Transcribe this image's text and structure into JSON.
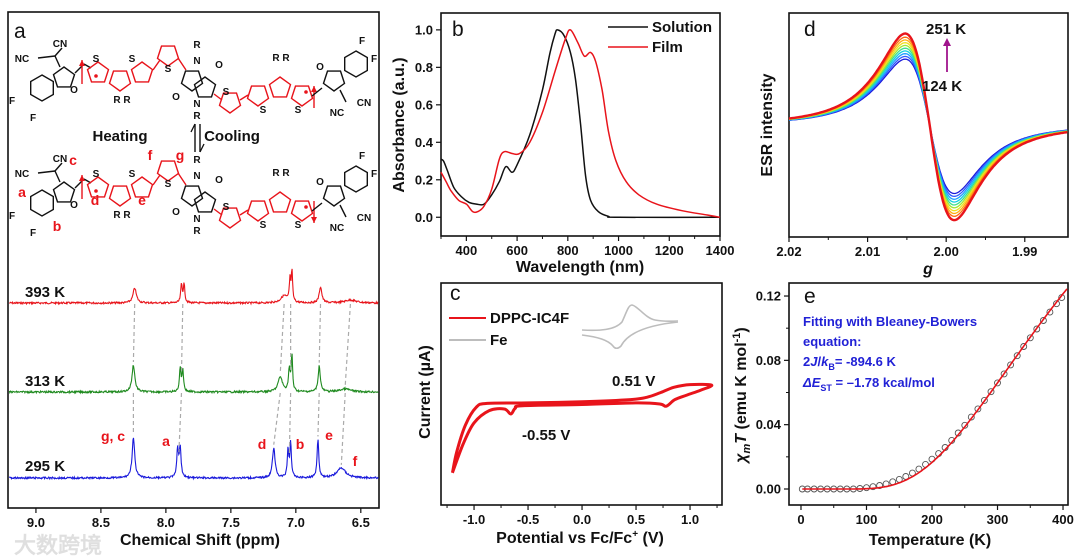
{
  "panel_a": {
    "label": "a",
    "heating": "Heating",
    "cooling": "Cooling",
    "atoms": {
      "NC": "NC",
      "CN": "CN",
      "F": "F",
      "O": "O",
      "S": "S",
      "R": "R",
      "N": "N",
      "RR": "R R"
    },
    "proton_labels": {
      "a": "a",
      "b": "b",
      "c": "c",
      "d": "d",
      "e": "e",
      "f": "f",
      "g": "g"
    },
    "watermark": "大数跨境"
  },
  "colors": {
    "red": "#e8141b",
    "green": "#1f8a1f",
    "blue": "#1a1adb",
    "gray": "#bdbdbd",
    "fit_text": "#2121d6",
    "magenta": "#a0148c"
  },
  "chart_data": [
    {
      "type": "line",
      "title": "",
      "xlabel": "Chemical Shift (ppm)",
      "ylabel": "",
      "xlim": [
        9.215,
        6.36
      ],
      "xticks": [
        "9.0",
        "8.5",
        "8.0",
        "7.5",
        "7.0",
        "6.5"
      ],
      "series": [
        {
          "name": "393 K",
          "color": "#e8141b",
          "peaks": [
            [
              8.24,
              15,
              0.015
            ],
            [
              7.88,
              18,
              0.007
            ],
            [
              7.86,
              18,
              0.007
            ],
            [
              7.09,
              7,
              0.03
            ],
            [
              7.045,
              22,
              0.006
            ],
            [
              7.03,
              30,
              0.006
            ],
            [
              6.81,
              16,
              0.012
            ],
            [
              6.58,
              3,
              0.05
            ]
          ]
        },
        {
          "name": "313 K",
          "color": "#1f8a1f",
          "peaks": [
            [
              8.25,
              27,
              0.013
            ],
            [
              7.89,
              24,
              0.007
            ],
            [
              7.87,
              22,
              0.007
            ],
            [
              7.12,
              15,
              0.02
            ],
            [
              7.05,
              22,
              0.008
            ],
            [
              7.03,
              36,
              0.006
            ],
            [
              6.82,
              26,
              0.01
            ],
            [
              6.62,
              3,
              0.05
            ]
          ]
        },
        {
          "name": "295 K",
          "color": "#1a1adb",
          "peaks": [
            [
              8.25,
              40,
              0.012
            ],
            [
              7.91,
              28,
              0.008
            ],
            [
              7.89,
              30,
              0.008
            ],
            [
              7.17,
              30,
              0.012
            ],
            [
              7.06,
              28,
              0.007
            ],
            [
              7.04,
              34,
              0.007
            ],
            [
              6.83,
              38,
              0.008
            ],
            [
              6.65,
              10,
              0.04
            ]
          ]
        }
      ],
      "peak_tracks_ppm": [
        [
          8.24,
          8.25,
          8.25
        ],
        [
          7.87,
          7.88,
          7.9
        ],
        [
          7.09,
          7.12,
          7.17
        ],
        [
          7.04,
          7.04,
          7.05
        ],
        [
          6.81,
          6.82,
          6.83
        ],
        [
          6.58,
          6.62,
          6.65
        ]
      ],
      "peak_labels": [
        "g, c",
        "a",
        "d",
        "b",
        "e",
        "f"
      ]
    },
    {
      "type": "line",
      "title": "",
      "panel_label": "b",
      "xlabel": "Wavelength (nm)",
      "ylabel": "Absorbance (a.u.)",
      "xlim": [
        300,
        1400
      ],
      "ylim": [
        -0.1,
        1.09
      ],
      "xticks": [
        "400",
        "600",
        "800",
        "1000",
        "1200",
        "1400"
      ],
      "xminor": [
        300,
        500,
        700,
        900,
        1100,
        1300
      ],
      "yticks": [
        "0.0",
        "0.2",
        "0.4",
        "0.6",
        "0.8",
        "1.0"
      ],
      "legend_position": "top-right",
      "series": [
        {
          "name": "Solution",
          "color": "#111111",
          "points": [
            [
              300,
              0.31
            ],
            [
              310,
              0.3
            ],
            [
              325,
              0.25
            ],
            [
              350,
              0.16
            ],
            [
              380,
              0.11
            ],
            [
              410,
              0.08
            ],
            [
              440,
              0.07
            ],
            [
              470,
              0.07
            ],
            [
              500,
              0.12
            ],
            [
              530,
              0.19
            ],
            [
              555,
              0.27
            ],
            [
              580,
              0.24
            ],
            [
              600,
              0.28
            ],
            [
              650,
              0.44
            ],
            [
              700,
              0.68
            ],
            [
              730,
              0.88
            ],
            [
              750,
              0.98
            ],
            [
              760,
              1.0
            ],
            [
              785,
              0.97
            ],
            [
              810,
              0.88
            ],
            [
              830,
              0.74
            ],
            [
              850,
              0.5
            ],
            [
              870,
              0.22
            ],
            [
              890,
              0.09
            ],
            [
              920,
              0.03
            ],
            [
              960,
              0.005
            ],
            [
              1000,
              0
            ],
            [
              1400,
              0
            ]
          ]
        },
        {
          "name": "Film",
          "color": "#e8141b",
          "points": [
            [
              300,
              0.24
            ],
            [
              320,
              0.19
            ],
            [
              340,
              0.14
            ],
            [
              370,
              0.09
            ],
            [
              400,
              0.07
            ],
            [
              425,
              0.03
            ],
            [
              445,
              0.03
            ],
            [
              470,
              0.06
            ],
            [
              500,
              0.15
            ],
            [
              530,
              0.31
            ],
            [
              550,
              0.35
            ],
            [
              580,
              0.34
            ],
            [
              610,
              0.34
            ],
            [
              650,
              0.4
            ],
            [
              700,
              0.56
            ],
            [
              750,
              0.78
            ],
            [
              790,
              0.95
            ],
            [
              810,
              1.0
            ],
            [
              840,
              0.93
            ],
            [
              865,
              0.86
            ],
            [
              890,
              0.88
            ],
            [
              910,
              0.83
            ],
            [
              935,
              0.68
            ],
            [
              960,
              0.46
            ],
            [
              990,
              0.3
            ],
            [
              1030,
              0.19
            ],
            [
              1080,
              0.12
            ],
            [
              1150,
              0.07
            ],
            [
              1250,
              0.035
            ],
            [
              1350,
              0.012
            ],
            [
              1400,
              0
            ]
          ]
        }
      ]
    },
    {
      "type": "line",
      "title": "",
      "panel_label": "c",
      "xlabel_main": "Potential vs Fc/Fc",
      "xlabel_sup": "+",
      "xlabel_tail": " (V)",
      "ylabel": "Current (µA)",
      "xlim": [
        -1.306,
        1.296
      ],
      "ylim": [
        -10,
        10
      ],
      "xticks": [
        "-1.0",
        "-0.5",
        "0.0",
        "0.5",
        "1.0"
      ],
      "xminor": [
        -1.25,
        -0.75,
        -0.25,
        0.25,
        0.75,
        1.25
      ],
      "legend_position": "top-left",
      "annotations": [
        "0.51 V",
        "-0.55 V"
      ],
      "series": [
        {
          "name": "DPPC-IC4F",
          "color": "#e8141b",
          "points": [
            [
              -1.2,
              -7.1
            ],
            [
              -1.16,
              -5.2
            ],
            [
              -1.08,
              -2.8
            ],
            [
              -0.98,
              -1.2
            ],
            [
              -0.88,
              -0.85
            ],
            [
              -0.5,
              -0.8
            ],
            [
              0,
              -0.7
            ],
            [
              0.45,
              -0.5
            ],
            [
              0.6,
              -0.3
            ],
            [
              0.72,
              0.1
            ],
            [
              0.85,
              0.6
            ],
            [
              1.0,
              0.85
            ],
            [
              1.2,
              0.8
            ],
            [
              1.1,
              0.35
            ],
            [
              0.97,
              -0.1
            ],
            [
              0.86,
              -0.5
            ],
            [
              0.78,
              -1.1
            ],
            [
              0.72,
              -0.9
            ],
            [
              0.5,
              -0.8
            ],
            [
              0.0,
              -0.95
            ],
            [
              -0.55,
              -1.05
            ],
            [
              -0.62,
              -1.3
            ],
            [
              -0.66,
              -1.8
            ],
            [
              -0.72,
              -1.35
            ],
            [
              -0.86,
              -1.5
            ],
            [
              -1.0,
              -2.6
            ],
            [
              -1.1,
              -4.5
            ],
            [
              -1.2,
              -7.1
            ]
          ]
        },
        {
          "name": "Fe",
          "color": "#bdbdbd"
        }
      ]
    },
    {
      "type": "line",
      "title": "",
      "panel_label": "d",
      "xlabel": "g",
      "ylabel": "ESR intensity",
      "xlim": [
        2.02,
        1.9845
      ],
      "ylim": [
        -1.2,
        1.2
      ],
      "xticks": [
        "2.02",
        "2.01",
        "2.00",
        "1.99"
      ],
      "xminor": [
        2.015,
        2.005,
        1.995
      ],
      "center_g": 2.0021,
      "linewidth_g": 0.0054,
      "annotations": {
        "high": "251 K",
        "low": "124 K"
      },
      "series": [
        {
          "name": "124 K",
          "amplitude": 0.72,
          "color": "#1a1adb"
        },
        {
          "amplitude": 0.75,
          "color": "#2f5bff"
        },
        {
          "amplitude": 0.78,
          "color": "#1fa0ff"
        },
        {
          "amplitude": 0.81,
          "color": "#14d0e0"
        },
        {
          "amplitude": 0.84,
          "color": "#3fe08a"
        },
        {
          "amplitude": 0.87,
          "color": "#a0e830"
        },
        {
          "amplitude": 0.9,
          "color": "#f0e020"
        },
        {
          "amplitude": 0.93,
          "color": "#ffb010"
        },
        {
          "amplitude": 0.96,
          "color": "#ff6a10"
        },
        {
          "name": "251 K",
          "amplitude": 1.0,
          "color": "#e8141b"
        }
      ]
    },
    {
      "type": "scatter",
      "title": "",
      "panel_label": "e",
      "xlabel": "Temperature (K)",
      "ylabel_parts": {
        "chi": "χ",
        "sub": "m",
        "T": "T",
        "units": " (emu K mol",
        "sup": "-1",
        "close": ")"
      },
      "xlim": [
        -18.3,
        407.6
      ],
      "ylim": [
        -0.00995,
        0.1281
      ],
      "xticks": [
        "0",
        "100",
        "200",
        "300",
        "400"
      ],
      "xminor": [
        50,
        150,
        250,
        350
      ],
      "yticks": [
        "0.00",
        "0.04",
        "0.08",
        "0.12"
      ],
      "yminor": [
        0.02,
        0.06,
        0.1
      ],
      "fit": {
        "model": "Bleaney-Bowers",
        "two_J_over_kB": -894.6,
        "scale": 1.5,
        "color": "#e8141b"
      },
      "fit_text": {
        "line1": "Fitting with Bleaney-Bowers",
        "line2": "equation:",
        "l3a": "2",
        "l3b": "J",
        "l3c": "/",
        "l3d": "k",
        "l3sub": "B",
        "l3e": "= -894.6 K",
        "l4a": "ΔE",
        "l4sub": "ST",
        "l4b": " = –1.78 kcal/mol"
      },
      "points": [
        [
          2,
          0
        ],
        [
          10,
          0
        ],
        [
          20,
          0
        ],
        [
          30,
          0
        ],
        [
          40,
          0
        ],
        [
          50,
          0
        ],
        [
          60,
          0
        ],
        [
          70,
          0
        ],
        [
          80,
          0
        ],
        [
          90,
          0.0003
        ],
        [
          100,
          0.0008
        ],
        [
          110,
          0.0014
        ],
        [
          120,
          0.0022
        ],
        [
          130,
          0.0032
        ],
        [
          140,
          0.0045
        ],
        [
          150,
          0.006
        ],
        [
          160,
          0.0078
        ],
        [
          170,
          0.0099
        ],
        [
          180,
          0.0124
        ],
        [
          190,
          0.0153
        ],
        [
          200,
          0.0185
        ],
        [
          210,
          0.022
        ],
        [
          220,
          0.0258
        ],
        [
          230,
          0.0302
        ],
        [
          240,
          0.0348
        ],
        [
          250,
          0.0396
        ],
        [
          260,
          0.0447
        ],
        [
          270,
          0.0498
        ],
        [
          280,
          0.0551
        ],
        [
          290,
          0.0605
        ],
        [
          300,
          0.066
        ],
        [
          310,
          0.0716
        ],
        [
          320,
          0.0772
        ],
        [
          330,
          0.0829
        ],
        [
          340,
          0.0886
        ],
        [
          350,
          0.094
        ],
        [
          360,
          0.0995
        ],
        [
          370,
          0.1048
        ],
        [
          380,
          0.11
        ],
        [
          390,
          0.1152
        ],
        [
          398,
          0.119
        ]
      ]
    }
  ]
}
